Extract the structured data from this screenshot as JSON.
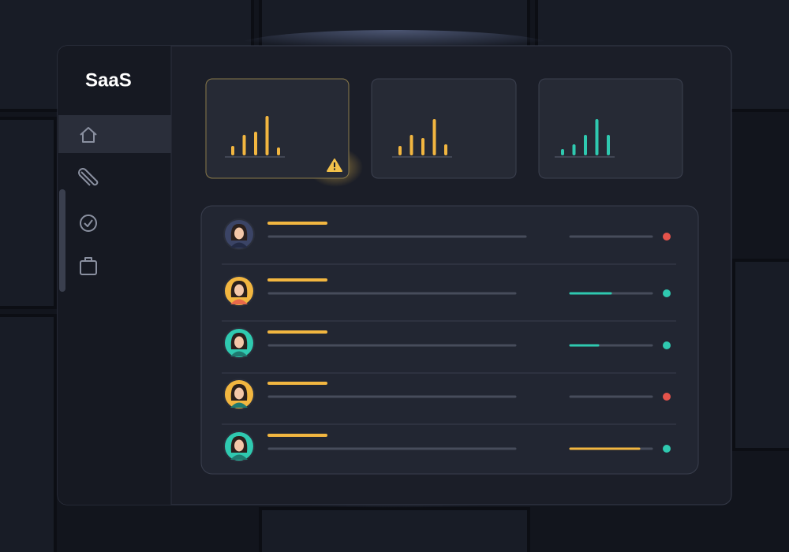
{
  "sidebar": {
    "title": "SaaS"
  }
}
